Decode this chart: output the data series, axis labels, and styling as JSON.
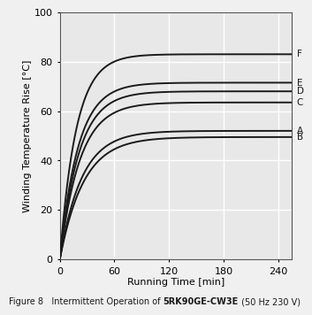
{
  "xlabel": "Running Time [min]",
  "ylabel": "Winding Temperature Rise [°C]",
  "xlim": [
    0,
    255
  ],
  "ylim": [
    0,
    100
  ],
  "xticks": [
    0,
    60,
    120,
    180,
    240
  ],
  "yticks": [
    0,
    20,
    40,
    60,
    80,
    100
  ],
  "bg_color": "#e8e8e8",
  "fig_color": "#f0f0f0",
  "grid_color": "#ffffff",
  "curves": [
    {
      "label": "F",
      "asymptote": 83.0,
      "tau": 18.0,
      "color": "#1a1a1a",
      "lw": 1.4
    },
    {
      "label": "E",
      "asymptote": 71.5,
      "tau": 20.0,
      "color": "#1a1a1a",
      "lw": 1.4
    },
    {
      "label": "D",
      "asymptote": 68.0,
      "tau": 21.0,
      "color": "#1a1a1a",
      "lw": 1.4
    },
    {
      "label": "C",
      "asymptote": 63.5,
      "tau": 22.0,
      "color": "#1a1a1a",
      "lw": 1.4
    },
    {
      "label": "A",
      "asymptote": 52.0,
      "tau": 24.0,
      "color": "#1a1a1a",
      "lw": 1.4
    },
    {
      "label": "B",
      "asymptote": 49.5,
      "tau": 26.0,
      "color": "#1a1a1a",
      "lw": 1.4
    }
  ],
  "label_y_offsets": {
    "F": 83.0,
    "E": 71.5,
    "D": 68.0,
    "C": 63.5,
    "A": 52.0,
    "B": 49.5
  },
  "caption_prefix": "Figure 8   Intermittent Operation of ",
  "caption_bold": "5RK90GE-CW3E",
  "caption_suffix": " (50 Hz 230 V)",
  "caption_fontsize": 7.0
}
